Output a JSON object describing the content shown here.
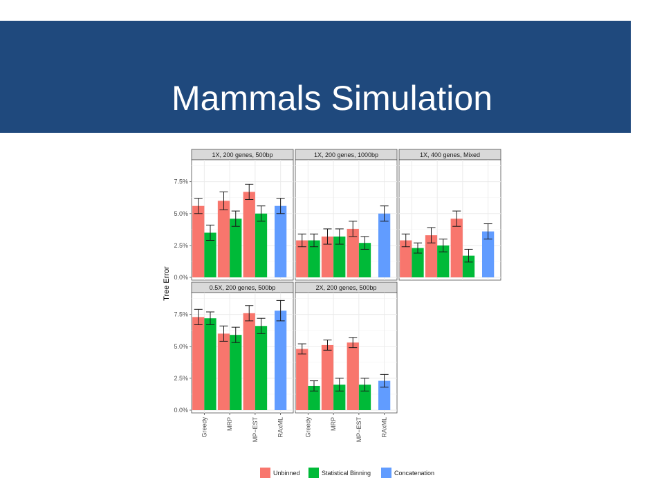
{
  "slide": {
    "title": "Mammals Simulation"
  },
  "colors": {
    "header_bg": "#1f497d",
    "title_text": "#ffffff"
  },
  "chart_data": {
    "type": "bar",
    "ylabel": "Tree Error",
    "ylim": [
      0,
      9.0
    ],
    "yticks": [
      "0.0%",
      "2.5%",
      "5.0%",
      "7.5%"
    ],
    "ytick_values": [
      0,
      2.5,
      5.0,
      7.5
    ],
    "categories": [
      "Greedy",
      "MRP",
      "MP−EST",
      "RAxML"
    ],
    "legend": {
      "placement": "bottom",
      "items": [
        {
          "name": "Unbinned",
          "color": "#f8766d"
        },
        {
          "name": "Statistical Binning",
          "color": "#00ba38"
        },
        {
          "name": "Concatenation",
          "color": "#619cff"
        }
      ]
    },
    "panels": [
      {
        "label": "1X, 200 genes, 500bp",
        "bars": [
          {
            "category": "Greedy",
            "unbinned": {
              "value": 5.6,
              "err": 0.6
            },
            "binned": {
              "value": 3.5,
              "err": 0.6
            }
          },
          {
            "category": "MRP",
            "unbinned": {
              "value": 6.0,
              "err": 0.7
            },
            "binned": {
              "value": 4.6,
              "err": 0.6
            }
          },
          {
            "category": "MP−EST",
            "unbinned": {
              "value": 6.7,
              "err": 0.6
            },
            "binned": {
              "value": 5.0,
              "err": 0.6
            }
          },
          {
            "category": "RAxML",
            "concatenation": {
              "value": 5.6,
              "err": 0.6
            }
          }
        ]
      },
      {
        "label": "1X, 200 genes, 1000bp",
        "bars": [
          {
            "category": "Greedy",
            "unbinned": {
              "value": 2.9,
              "err": 0.5
            },
            "binned": {
              "value": 2.9,
              "err": 0.5
            }
          },
          {
            "category": "MRP",
            "unbinned": {
              "value": 3.2,
              "err": 0.6
            },
            "binned": {
              "value": 3.2,
              "err": 0.6
            }
          },
          {
            "category": "MP−EST",
            "unbinned": {
              "value": 3.8,
              "err": 0.6
            },
            "binned": {
              "value": 2.7,
              "err": 0.5
            }
          },
          {
            "category": "RAxML",
            "concatenation": {
              "value": 5.0,
              "err": 0.6
            }
          }
        ]
      },
      {
        "label": "1X, 400 genes, Mixed",
        "bars": [
          {
            "category": "Greedy",
            "unbinned": {
              "value": 2.9,
              "err": 0.5
            },
            "binned": {
              "value": 2.3,
              "err": 0.4
            }
          },
          {
            "category": "MRP",
            "unbinned": {
              "value": 3.3,
              "err": 0.6
            },
            "binned": {
              "value": 2.5,
              "err": 0.5
            }
          },
          {
            "category": "MP−EST",
            "unbinned": {
              "value": 4.6,
              "err": 0.6
            },
            "binned": {
              "value": 1.7,
              "err": 0.5
            }
          },
          {
            "category": "RAxML",
            "concatenation": {
              "value": 3.6,
              "err": 0.6
            }
          }
        ]
      },
      {
        "label": "0.5X, 200 genes, 500bp",
        "bars": [
          {
            "category": "Greedy",
            "unbinned": {
              "value": 7.3,
              "err": 0.6
            },
            "binned": {
              "value": 7.2,
              "err": 0.5
            }
          },
          {
            "category": "MRP",
            "unbinned": {
              "value": 6.0,
              "err": 0.6
            },
            "binned": {
              "value": 5.9,
              "err": 0.6
            }
          },
          {
            "category": "MP−EST",
            "unbinned": {
              "value": 7.6,
              "err": 0.6
            },
            "binned": {
              "value": 6.6,
              "err": 0.6
            }
          },
          {
            "category": "RAxML",
            "concatenation": {
              "value": 7.8,
              "err": 0.8
            }
          }
        ]
      },
      {
        "label": "2X, 200 genes, 500bp",
        "bars": [
          {
            "category": "Greedy",
            "unbinned": {
              "value": 4.8,
              "err": 0.4
            },
            "binned": {
              "value": 1.9,
              "err": 0.4
            }
          },
          {
            "category": "MRP",
            "unbinned": {
              "value": 5.1,
              "err": 0.4
            },
            "binned": {
              "value": 2.0,
              "err": 0.5
            }
          },
          {
            "category": "MP−EST",
            "unbinned": {
              "value": 5.3,
              "err": 0.4
            },
            "binned": {
              "value": 2.0,
              "err": 0.5
            }
          },
          {
            "category": "RAxML",
            "concatenation": {
              "value": 2.3,
              "err": 0.5
            }
          }
        ]
      }
    ]
  }
}
